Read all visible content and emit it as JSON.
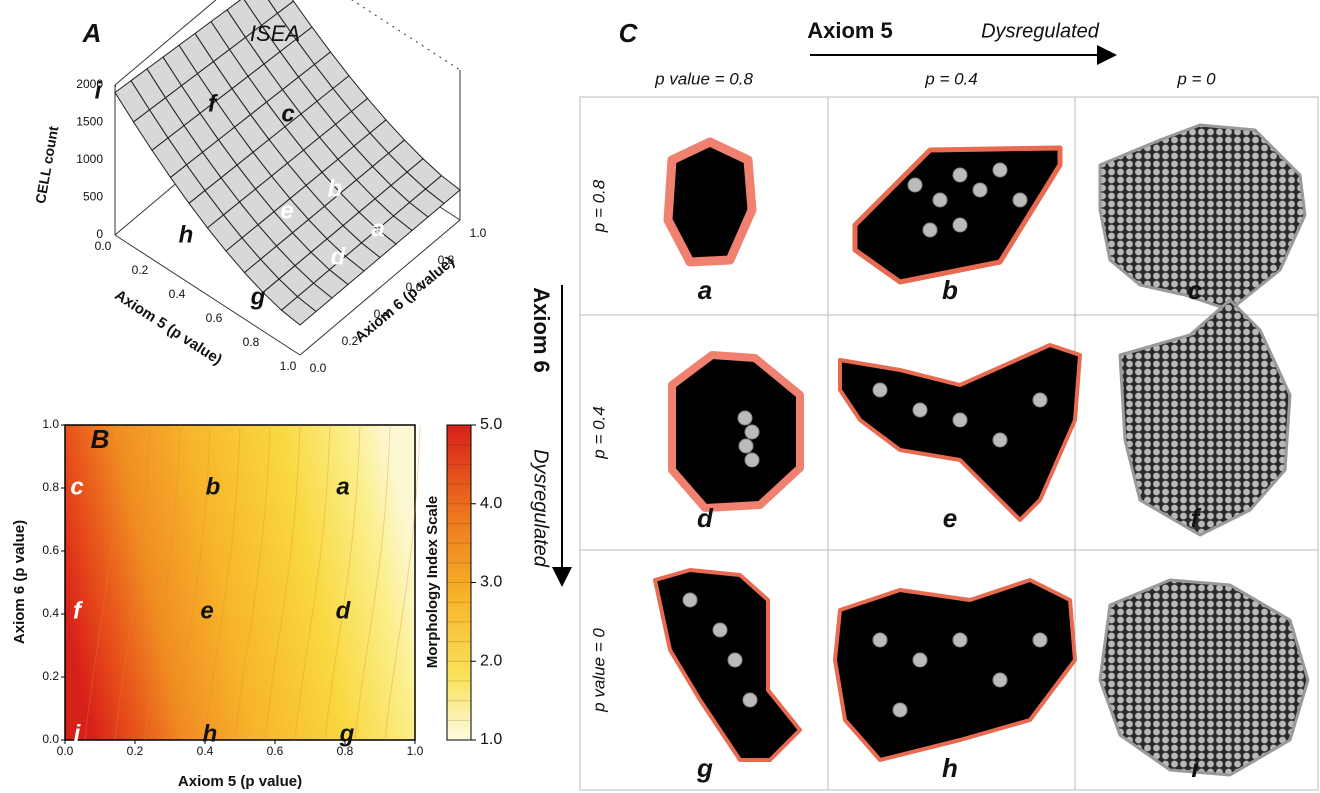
{
  "panel_a": {
    "letter": "A",
    "title": "ISEA",
    "z_axis_label": "CELL count",
    "z_ticks": [
      "0",
      "500",
      "1000",
      "1500",
      "2000"
    ],
    "x_axis_label": "Axiom 5 (p value)",
    "x_ticks": [
      "0.0",
      "0.2",
      "0.4",
      "0.6",
      "0.8",
      "1.0"
    ],
    "y_axis_label": "Axiom 6 (p value)",
    "y_ticks": [
      "0.0",
      "0.2",
      "0.4",
      "0.6",
      "0.8",
      "1.0"
    ],
    "point_labels": [
      "i",
      "f",
      "c",
      "b",
      "e",
      "a",
      "h",
      "d",
      "g"
    ]
  },
  "panel_b": {
    "letter": "B",
    "x_axis_label": "Axiom 5 (p value)",
    "y_axis_label": "Axiom 6 (p value)",
    "x_ticks": [
      "0.0",
      "0.2",
      "0.4",
      "0.6",
      "0.8",
      "1.0"
    ],
    "y_ticks": [
      "0.0",
      "0.2",
      "0.4",
      "0.6",
      "0.8",
      "1.0"
    ],
    "point_labels": [
      "c",
      "b",
      "a",
      "f",
      "e",
      "d",
      "i",
      "h",
      "g"
    ],
    "colorbar_label": "Morphology Index Scale",
    "colorbar_ticks": [
      "5.0",
      "4.0",
      "3.0",
      "2.0",
      "1.0"
    ]
  },
  "panel_c": {
    "letter": "C",
    "column_axis": "Axiom 5",
    "column_direction": "Dysregulated",
    "column_headers": [
      "p value = 0.8",
      "p = 0.4",
      "p = 0"
    ],
    "row_axis": "Axiom 6",
    "row_direction": "Dysregulated",
    "row_headers": [
      "p = 0.8",
      "p = 0.4",
      "p value = 0"
    ],
    "cell_labels": [
      "a",
      "b",
      "c",
      "d",
      "e",
      "f",
      "g",
      "h",
      "i"
    ]
  }
}
